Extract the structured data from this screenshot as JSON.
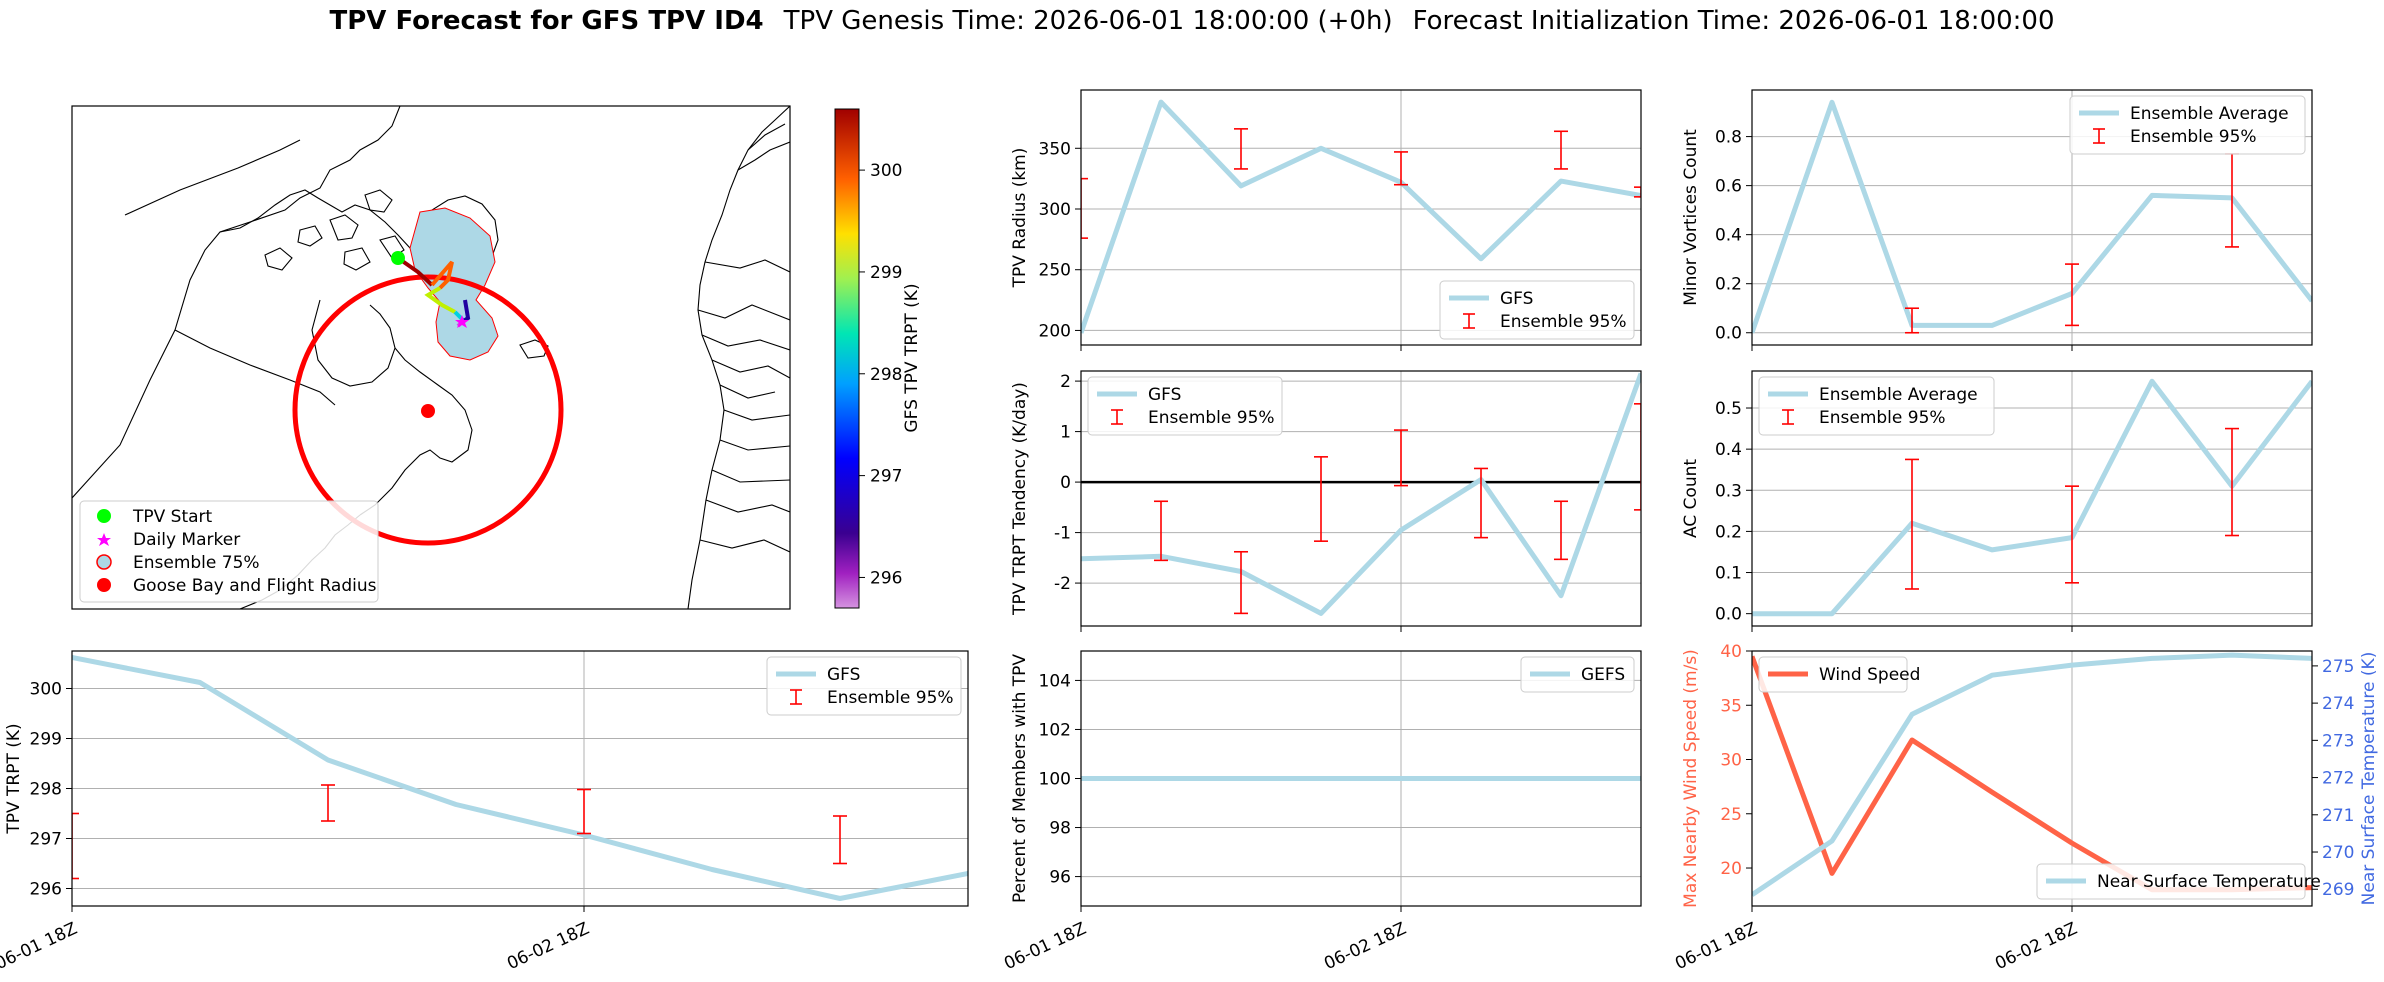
{
  "figure": {
    "title_bold": "TPV Forecast for GFS TPV ID4",
    "genesis": "TPV Genesis Time: 2026-06-01 18:00:00 (+0h)",
    "init": "Forecast Initialization Time: 2026-06-01 18:00:00"
  },
  "colors": {
    "gfs_line": "#add8e6",
    "error_bar": "#ff0000",
    "wind": "#ff6347",
    "temp_axis": "#4169e1",
    "track_circle": "#ff0000"
  },
  "map": {
    "colorbar_label": "GFS TPV TRPT (K)",
    "colorbar_ticks": [
      "296",
      "297",
      "298",
      "299",
      "300"
    ],
    "colorbar_range": [
      295.7,
      300.6
    ],
    "legend": [
      "TPV Start",
      "Daily Marker",
      "Ensemble 75%",
      "Goose Bay and Flight Radius"
    ]
  },
  "chart_data": [
    {
      "id": "radius",
      "type": "line",
      "ylabel": "TPV Radius (km)",
      "ylim": [
        188,
        398
      ],
      "yticks": [
        200,
        250,
        300,
        350
      ],
      "x": [
        0,
        1,
        2,
        3,
        4,
        5,
        6,
        7
      ],
      "xlim": [
        0,
        7
      ],
      "xgrid": [
        4
      ],
      "series": [
        {
          "name": "GFS",
          "values": [
            198,
            388,
            319,
            350,
            322,
            259,
            323,
            311
          ]
        }
      ],
      "error_bars": [
        {
          "x": 0,
          "low": 276,
          "high": 325
        },
        {
          "x": 2,
          "low": 333,
          "high": 366
        },
        {
          "x": 4,
          "low": 320,
          "high": 347
        },
        {
          "x": 6,
          "low": 333,
          "high": 364
        },
        {
          "x": 7,
          "low": 310,
          "high": 318
        }
      ],
      "legend": [
        "GFS",
        "Ensemble 95%"
      ],
      "legend_pos": "lower-right"
    },
    {
      "id": "minor",
      "type": "line",
      "ylabel": "Minor Vortices Count",
      "ylim": [
        -0.05,
        0.99
      ],
      "yticks": [
        0.0,
        0.2,
        0.4,
        0.6,
        0.8
      ],
      "x": [
        0,
        1,
        2,
        3,
        4,
        5,
        6,
        7
      ],
      "xlim": [
        0,
        7
      ],
      "xgrid": [
        4
      ],
      "series": [
        {
          "name": "Ensemble Average",
          "values": [
            0.0,
            0.94,
            0.03,
            0.03,
            0.16,
            0.56,
            0.55,
            0.13
          ]
        }
      ],
      "error_bars": [
        {
          "x": 2,
          "low": 0.0,
          "high": 0.1
        },
        {
          "x": 4,
          "low": 0.03,
          "high": 0.28
        },
        {
          "x": 6,
          "low": 0.35,
          "high": 0.73
        }
      ],
      "legend": [
        "Ensemble Average",
        "Ensemble 95%"
      ],
      "legend_pos": "upper-right"
    },
    {
      "id": "tendency",
      "type": "line",
      "ylabel": "TPV TRPT Tendency (K/day)",
      "ylim": [
        -2.85,
        2.2
      ],
      "yticks": [
        -2,
        -1,
        0,
        1,
        2
      ],
      "x": [
        0,
        1,
        2,
        3,
        4,
        5,
        6,
        7
      ],
      "xlim": [
        0,
        7
      ],
      "xgrid": [
        4
      ],
      "zero_line": true,
      "series": [
        {
          "name": "GFS",
          "values": [
            -1.52,
            -1.47,
            -1.77,
            -2.6,
            -0.95,
            0.05,
            -2.25,
            2.15
          ]
        }
      ],
      "error_bars": [
        {
          "x": 1,
          "low": -1.55,
          "high": -0.38
        },
        {
          "x": 2,
          "low": -2.6,
          "high": -1.38
        },
        {
          "x": 3,
          "low": -1.17,
          "high": 0.5
        },
        {
          "x": 4,
          "low": -0.07,
          "high": 1.03
        },
        {
          "x": 5,
          "low": -1.1,
          "high": 0.27
        },
        {
          "x": 6,
          "low": -1.53,
          "high": -0.38
        },
        {
          "x": 7,
          "low": -0.55,
          "high": 1.55
        }
      ],
      "legend": [
        "GFS",
        "Ensemble 95%"
      ],
      "legend_pos": "upper-left"
    },
    {
      "id": "ac",
      "type": "line",
      "ylabel": "AC Count",
      "ylim": [
        -0.03,
        0.59
      ],
      "yticks": [
        0.0,
        0.1,
        0.2,
        0.3,
        0.4,
        0.5
      ],
      "x": [
        0,
        1,
        2,
        3,
        4,
        5,
        6,
        7
      ],
      "xlim": [
        0,
        7
      ],
      "xgrid": [
        4
      ],
      "series": [
        {
          "name": "Ensemble Average",
          "values": [
            0.0,
            0.0,
            0.22,
            0.155,
            0.185,
            0.565,
            0.31,
            0.565
          ]
        }
      ],
      "error_bars": [
        {
          "x": 2,
          "low": 0.06,
          "high": 0.375
        },
        {
          "x": 4,
          "low": 0.075,
          "high": 0.31
        },
        {
          "x": 6,
          "low": 0.19,
          "high": 0.45
        }
      ],
      "legend": [
        "Ensemble Average",
        "Ensemble 95%"
      ],
      "legend_pos": "upper-left"
    },
    {
      "id": "trpt",
      "type": "line",
      "ylabel": "TPV TRPT (K)",
      "ylim": [
        295.65,
        300.75
      ],
      "yticks": [
        296,
        297,
        298,
        299,
        300
      ],
      "x": [
        0,
        1,
        2,
        3,
        4,
        5,
        6,
        7
      ],
      "xlim": [
        0,
        7
      ],
      "xgrid": [
        4
      ],
      "xticks": [
        {
          "x": 0,
          "label": "06-01 18Z"
        },
        {
          "x": 4,
          "label": "06-02 18Z"
        }
      ],
      "series": [
        {
          "name": "GFS",
          "values": [
            300.62,
            300.12,
            298.57,
            297.68,
            297.07,
            296.38,
            295.8,
            296.3
          ]
        }
      ],
      "error_bars": [
        {
          "x": 0,
          "low": 296.2,
          "high": 297.5
        },
        {
          "x": 2,
          "low": 297.35,
          "high": 298.07
        },
        {
          "x": 4,
          "low": 297.1,
          "high": 297.98
        },
        {
          "x": 6,
          "low": 296.5,
          "high": 297.45
        }
      ],
      "legend": [
        "GFS",
        "Ensemble 95%"
      ],
      "legend_pos": "upper-right"
    },
    {
      "id": "percent",
      "type": "line",
      "ylabel": "Percent of Members with TPV",
      "ylim": [
        94.8,
        105.2
      ],
      "yticks": [
        96,
        98,
        100,
        102,
        104
      ],
      "x": [
        0,
        7
      ],
      "xlim": [
        0,
        7
      ],
      "xgrid": [
        4
      ],
      "xticks": [
        {
          "x": 0,
          "label": "06-01 18Z"
        },
        {
          "x": 4,
          "label": "06-02 18Z"
        }
      ],
      "series": [
        {
          "name": "GEFS",
          "values": [
            100,
            100
          ]
        }
      ],
      "error_bars": [],
      "legend": [
        "GEFS"
      ],
      "legend_pos": "upper-right"
    },
    {
      "id": "wind",
      "type": "line",
      "ylabel": "Max Nearby Wind Speed (m/s)",
      "ylabel_right": "Near Surface Temperature (K)",
      "ylim": [
        16.5,
        40
      ],
      "yticks": [
        20,
        25,
        30,
        35,
        40
      ],
      "ylim_right": [
        268.55,
        275.4
      ],
      "yticks_right": [
        269,
        270,
        271,
        272,
        273,
        274,
        275
      ],
      "x": [
        0,
        1,
        2,
        3,
        4,
        5,
        6,
        7
      ],
      "xlim": [
        0,
        7
      ],
      "xgrid": [
        4
      ],
      "xticks": [
        {
          "x": 0,
          "label": "06-01 18Z"
        },
        {
          "x": 4,
          "label": "06-02 18Z"
        }
      ],
      "series": [
        {
          "name": "Wind Speed",
          "axis": "left",
          "values": [
            39.5,
            19.5,
            31.8,
            27.0,
            22.3,
            18.0,
            18.0,
            18.2
          ]
        },
        {
          "name": "Near Surface Temperature",
          "axis": "right",
          "values": [
            268.85,
            270.3,
            273.7,
            274.75,
            275.02,
            275.2,
            275.29,
            275.2
          ]
        }
      ],
      "legend": [
        "Wind Speed",
        "Near Surface Temperature"
      ]
    }
  ]
}
